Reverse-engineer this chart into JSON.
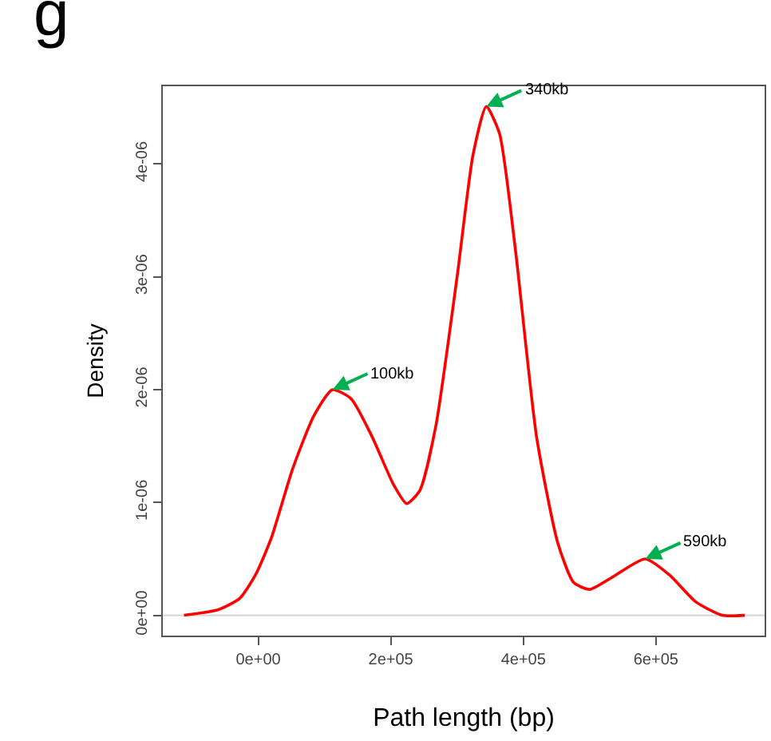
{
  "chart_data": {
    "type": "line",
    "xlabel": "Path length (bp)",
    "ylabel": "Density",
    "annotations": [
      "g",
      {
        "text": "100kb",
        "x": 112000,
        "y": 2e-06
      },
      {
        "text": "340kb",
        "x": 344000,
        "y": 4.51e-06
      },
      {
        "text": "590kb",
        "x": 584000,
        "y": 5e-07
      }
    ],
    "series": [
      {
        "color": "#ff0000",
        "x": [
          -112000,
          -60000,
          -28000,
          -4000,
          20000,
          52000,
          84000,
          112000,
          140000,
          172000,
          204000,
          224000,
          244000,
          268000,
          300000,
          324000,
          344000,
          364000,
          388000,
          420000,
          452000,
          476000,
          500000,
          532000,
          584000,
          620000,
          660000,
          700000,
          734000
        ],
        "values": [
          0,
          5e-08,
          1.5e-07,
          3.6e-07,
          6.9e-07,
          1.3e-06,
          1.77e-06,
          2e-06,
          1.92e-06,
          1.58e-06,
          1.16e-06,
          9.9e-07,
          1.11e-06,
          1.68e-06,
          3e-06,
          4.08e-06,
          4.51e-06,
          4.27e-06,
          3.24e-06,
          1.58e-06,
          6.4e-07,
          2.9e-07,
          2.3e-07,
          3.3e-07,
          5e-07,
          3.6e-07,
          1.2e-07,
          0,
          0
        ]
      }
    ],
    "xlim": [
      -144000,
      764000
    ],
    "ylim": [
      -1.8e-07,
      4.69e-06
    ],
    "xticks": [
      {
        "value": 0,
        "label": "0e+00"
      },
      {
        "value": 200000,
        "label": "2e+05"
      },
      {
        "value": 400000,
        "label": "4e+05"
      },
      {
        "value": 600000,
        "label": "6e+05"
      }
    ],
    "yticks": [
      {
        "value": 0,
        "label": "0e+00"
      },
      {
        "value": 1e-06,
        "label": "1e-06"
      },
      {
        "value": 2e-06,
        "label": "2e-06"
      },
      {
        "value": 3e-06,
        "label": "3e-06"
      },
      {
        "value": 4e-06,
        "label": "4e-06"
      }
    ],
    "ref_lines": [
      {
        "axis": "y",
        "value": 0,
        "color": "#d9d9d9"
      }
    ],
    "grid": false,
    "marker": "none",
    "line_style": "solid"
  }
}
